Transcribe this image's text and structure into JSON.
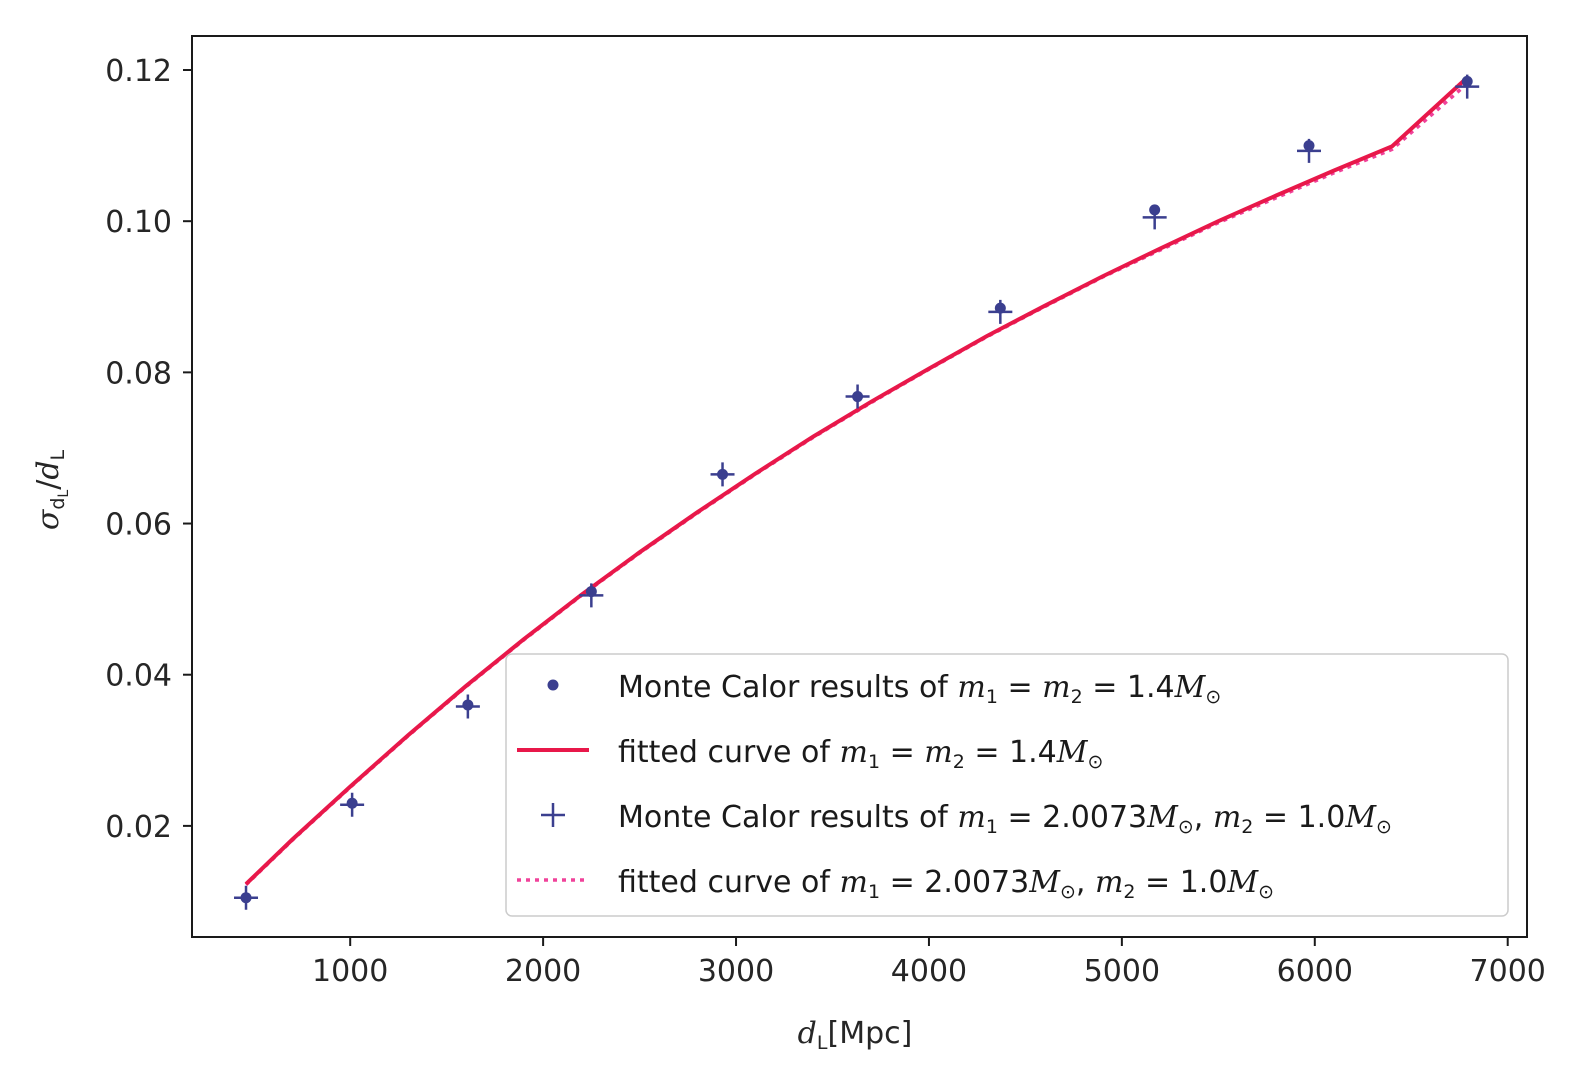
{
  "chart_data": {
    "type": "scatter",
    "xlabel": {
      "symbol": "d",
      "sub": "L",
      "suffix": "[Mpc]"
    },
    "ylabel": {
      "symbol": "σ",
      "sub": "d",
      "subsub": "L",
      "slash": "/",
      "symbol2": "d",
      "sub2": "L"
    },
    "xlim": [
      180,
      7100
    ],
    "ylim": [
      0.0053,
      0.1245
    ],
    "xticks": [
      1000,
      2000,
      3000,
      4000,
      5000,
      6000,
      7000
    ],
    "xtick_labels": [
      "1000",
      "2000",
      "3000",
      "4000",
      "5000",
      "6000",
      "7000"
    ],
    "yticks": [
      0.02,
      0.04,
      0.06,
      0.08,
      0.1,
      0.12
    ],
    "ytick_labels": [
      "0.02",
      "0.04",
      "0.06",
      "0.08",
      "0.10",
      "0.12"
    ],
    "grid": false,
    "legend_position": "lower-right",
    "series": [
      {
        "name": "Monte Calor results of m1 = m2 = 1.4M⊙",
        "legend": {
          "text": "Monte Calor results of ",
          "math": [
            [
              "m",
              "1",
              " = "
            ],
            [
              "m",
              "2",
              " = 1.4"
            ],
            [
              "M",
              "⊙",
              ""
            ]
          ]
        },
        "marker": "dot",
        "color": "#3b3f8f",
        "x": [
          460,
          1010,
          1610,
          2250,
          2930,
          3630,
          4370,
          5170,
          5970,
          6790
        ],
        "y": [
          0.0105,
          0.023,
          0.036,
          0.051,
          0.0665,
          0.0768,
          0.0885,
          0.1015,
          0.11,
          0.1185
        ]
      },
      {
        "name": "fitted curve of m1 = m2 = 1.4M⊙",
        "legend": {
          "text": "fitted curve of ",
          "math": [
            [
              "m",
              "1",
              " = "
            ],
            [
              "m",
              "2",
              " = 1.4"
            ],
            [
              "M",
              "⊙",
              ""
            ]
          ]
        },
        "line": "solid",
        "color": "#e8184a",
        "x": [
          460,
          700,
          1000,
          1300,
          1600,
          1900,
          2200,
          2500,
          2800,
          3100,
          3400,
          3700,
          4000,
          4300,
          4600,
          4900,
          5200,
          5500,
          5800,
          6100,
          6400,
          6790
        ],
        "y": [
          0.0123,
          0.0182,
          0.0252,
          0.032,
          0.0385,
          0.0447,
          0.0506,
          0.0562,
          0.0615,
          0.0666,
          0.0715,
          0.0761,
          0.0805,
          0.0848,
          0.0888,
          0.0927,
          0.0964,
          0.1,
          0.1034,
          0.1067,
          0.1099,
          0.119
        ]
      },
      {
        "name": "Monte Calor results of m1 = 2.0073M⊙, m2 = 1.0M⊙",
        "legend": {
          "text": "Monte Calor results of ",
          "math": [
            [
              "m",
              "1",
              " = 2.0073"
            ],
            [
              "M",
              "⊙",
              ", "
            ],
            [
              "m",
              "2",
              " = 1.0"
            ],
            [
              "M",
              "⊙",
              ""
            ]
          ]
        },
        "marker": "plus",
        "color": "#3b3f8f",
        "x": [
          460,
          1010,
          1610,
          2250,
          2930,
          3630,
          4370,
          5170,
          5970,
          6790
        ],
        "y": [
          0.0105,
          0.0228,
          0.0358,
          0.0505,
          0.0665,
          0.0768,
          0.088,
          0.1005,
          0.1093,
          0.1178
        ]
      },
      {
        "name": "fitted curve of m1 = 2.0073M⊙, m2 = 1.0M⊙",
        "legend": {
          "text": "fitted curve of ",
          "math": [
            [
              "m",
              "1",
              " = 2.0073"
            ],
            [
              "M",
              "⊙",
              ", "
            ],
            [
              "m",
              "2",
              " = 1.0"
            ],
            [
              "M",
              "⊙",
              ""
            ]
          ]
        },
        "line": "dotted",
        "color": "#f0429a",
        "x": [
          460,
          700,
          1000,
          1300,
          1600,
          1900,
          2200,
          2500,
          2800,
          3100,
          3400,
          3700,
          4000,
          4300,
          4600,
          4900,
          5200,
          5500,
          5800,
          6100,
          6400,
          6790
        ],
        "y": [
          0.0122,
          0.0181,
          0.0251,
          0.0319,
          0.0384,
          0.0446,
          0.0505,
          0.0561,
          0.0614,
          0.0665,
          0.0714,
          0.076,
          0.0804,
          0.0847,
          0.0887,
          0.0926,
          0.0962,
          0.0998,
          0.1031,
          0.1064,
          0.1095,
          0.1182
        ]
      }
    ]
  }
}
